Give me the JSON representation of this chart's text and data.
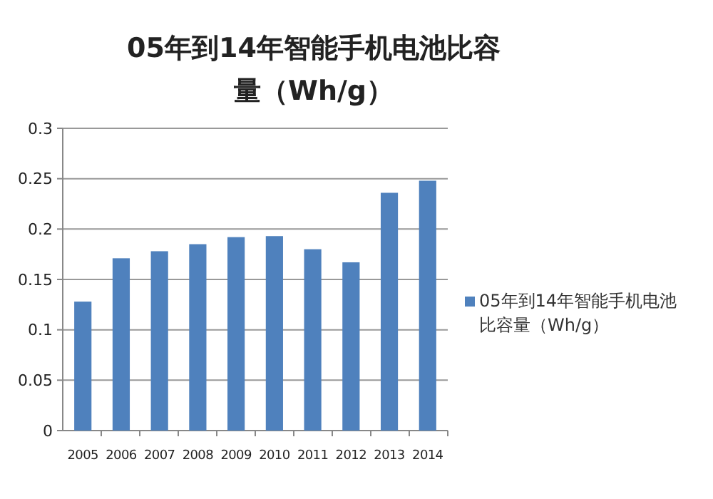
{
  "chart_data": {
    "type": "bar",
    "title": "05年到14年智能手机电池比容量（Wh/g）",
    "categories": [
      "2005",
      "2006",
      "2007",
      "2008",
      "2009",
      "2010",
      "2011",
      "2012",
      "2013",
      "2014"
    ],
    "series": [
      {
        "name": "05年到14年智能手机电池比容量（Wh/g）",
        "color": "#4f81bd",
        "values": [
          0.128,
          0.171,
          0.178,
          0.185,
          0.192,
          0.193,
          0.18,
          0.167,
          0.236,
          0.248
        ]
      }
    ],
    "ylim": [
      0,
      0.3
    ],
    "yticks": [
      0,
      0.05,
      0.1,
      0.15,
      0.2,
      0.25,
      0.3
    ],
    "grid": "y",
    "legend": "right"
  }
}
